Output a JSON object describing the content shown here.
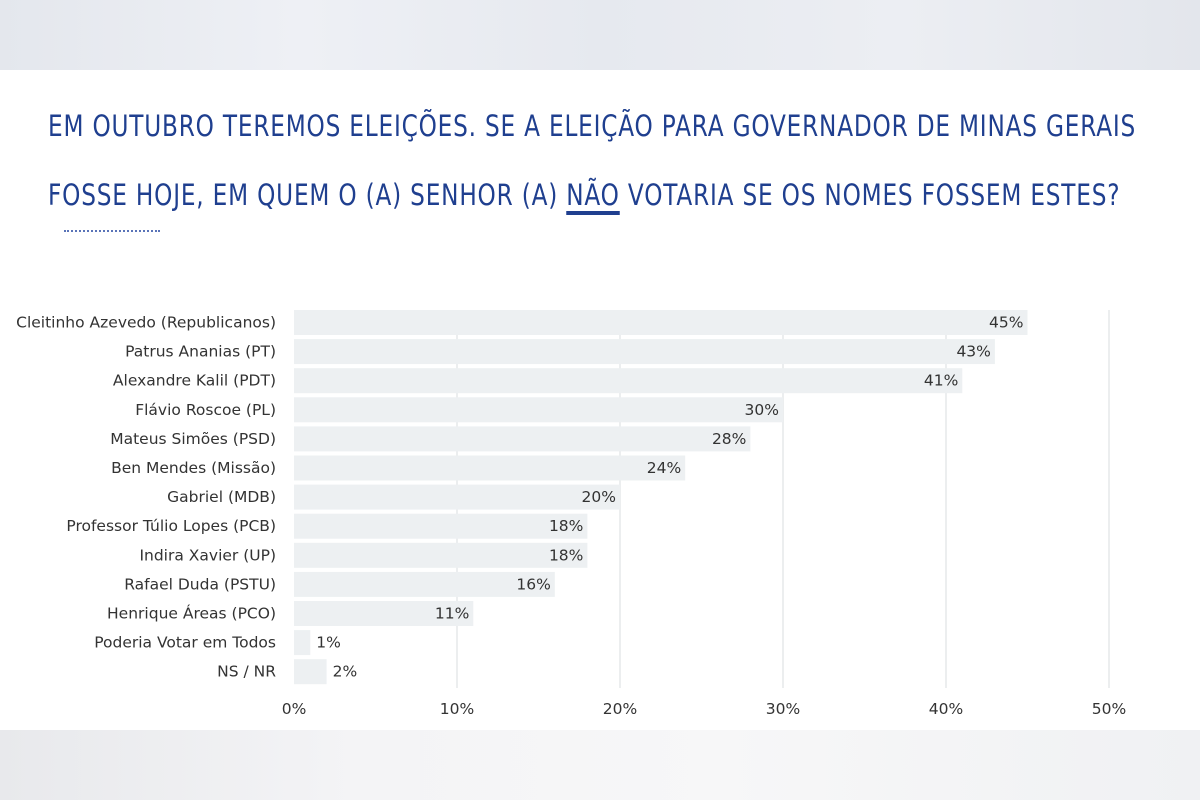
{
  "title": {
    "line1": "EM OUTUBRO TEREMOS ELEIÇÕES. SE A ELEIÇÃO PARA GOVERNADOR DE MINAS GERAIS",
    "line2_before": "FOSSE HOJE, EM QUEM O (A) SENHOR (A) ",
    "line2_emph": "NÃO",
    "line2_after": " VOTARIA SE OS NOMES FOSSEM ESTES?"
  },
  "chart_data": {
    "type": "bar",
    "orientation": "horizontal",
    "categories": [
      "Cleitinho Azevedo (Republicanos)",
      "Patrus Ananias (PT)",
      "Alexandre Kalil (PDT)",
      "Flávio Roscoe (PL)",
      "Mateus Simões (PSD)",
      "Ben Mendes (Missão)",
      "Gabriel (MDB)",
      "Professor Túlio Lopes (PCB)",
      "Indira Xavier (UP)",
      "Rafael Duda (PSTU)",
      "Henrique Áreas (PCO)",
      "Poderia Votar em Todos",
      "NS / NR"
    ],
    "values": [
      45,
      43,
      41,
      30,
      28,
      24,
      20,
      18,
      18,
      16,
      11,
      1,
      2
    ],
    "value_labels": [
      "45%",
      "43%",
      "41%",
      "30%",
      "28%",
      "24%",
      "20%",
      "18%",
      "18%",
      "16%",
      "11%",
      "1%",
      "2%"
    ],
    "xlim": [
      0,
      50
    ],
    "x_ticks": [
      0,
      10,
      20,
      30,
      40,
      50
    ],
    "x_tick_labels": [
      "0%",
      "10%",
      "20%",
      "30%",
      "40%",
      "50%"
    ],
    "grid": "vertical",
    "colors": {
      "bar": "#edf0f2",
      "grid": "#d9dcdf",
      "text": "#333333",
      "title": "#1f3f8f"
    }
  }
}
